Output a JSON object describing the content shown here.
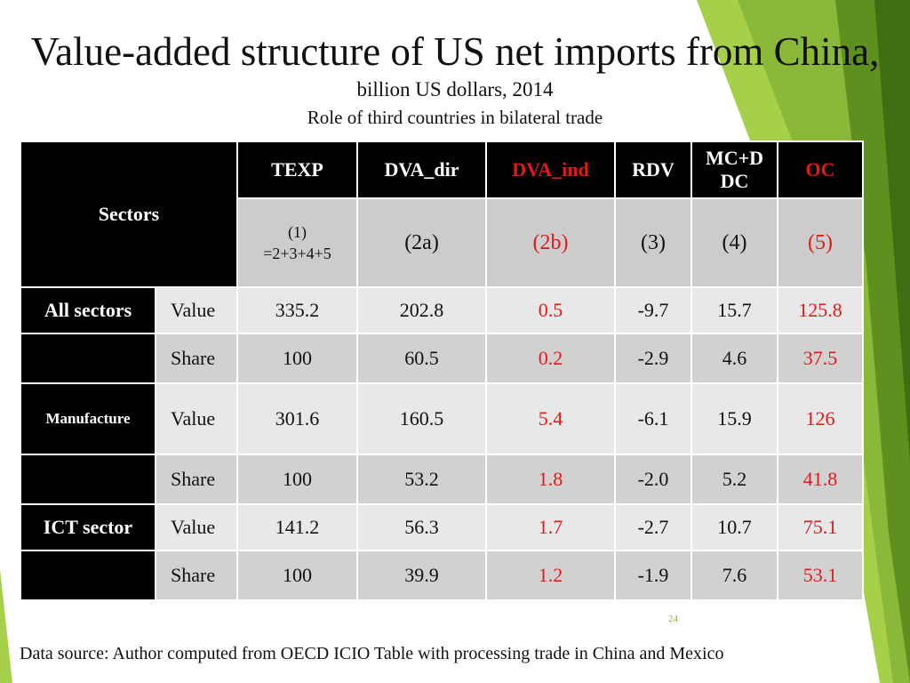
{
  "title": "Value-added structure of US net imports from China,",
  "subtitle": "billion US dollars, 2014",
  "subtitle2": "Role of third countries in bilateral trade",
  "table": {
    "sectors_header": "Sectors",
    "columns": [
      {
        "label": "TEXP",
        "code": "(1)",
        "code2": "=2+3+4+5",
        "highlight": false
      },
      {
        "label": "DVA_dir",
        "code": "(2a)",
        "highlight": false
      },
      {
        "label": "DVA_ind",
        "code": "(2b)",
        "highlight": true
      },
      {
        "label": "RDV",
        "code": "(3)",
        "highlight": false
      },
      {
        "label": "MC+D",
        "label2": "DC",
        "code": "(4)",
        "highlight": false
      },
      {
        "label": "OC",
        "code": "(5)",
        "highlight": true
      }
    ],
    "rows": [
      {
        "sector": "All sectors",
        "kind": "Value",
        "values": [
          "335.2",
          "202.8",
          "0.5",
          "-9.7",
          "15.7",
          "125.8"
        ]
      },
      {
        "sector": "",
        "kind": "Share",
        "values": [
          "100",
          "60.5",
          "0.2",
          "-2.9",
          "4.6",
          "37.5"
        ]
      },
      {
        "sector": "Manufacture",
        "kind": "Value",
        "values": [
          "301.6",
          "160.5",
          "5.4",
          "-6.1",
          "15.9",
          "126"
        ]
      },
      {
        "sector": "",
        "kind": "Share",
        "values": [
          "100",
          "53.2",
          "1.8",
          "-2.0",
          "5.2",
          "41.8"
        ]
      },
      {
        "sector": "ICT sector",
        "kind": "Value",
        "values": [
          "141.2",
          "56.3",
          "1.7",
          "-2.7",
          "10.7",
          "75.1"
        ]
      },
      {
        "sector": "",
        "kind": "Share",
        "values": [
          "100",
          "39.9",
          "1.2",
          "-1.9",
          "7.6",
          "53.1"
        ]
      }
    ]
  },
  "page_number": "24",
  "source": "Data source: Author computed from OECD ICIO Table with processing trade in China and Mexico",
  "colors": {
    "accent_red": "#e11a1a",
    "green_light": "#a6cf4a",
    "green_dark": "#5e8f1f"
  }
}
